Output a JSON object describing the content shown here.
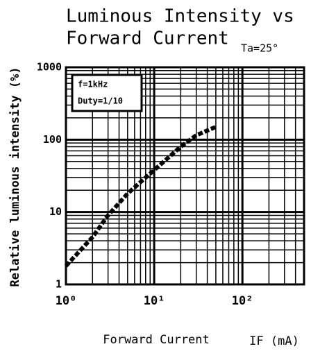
{
  "chart_data": {
    "type": "line",
    "title": [
      "Luminous Intensity vs",
      "Forward Current"
    ],
    "annotations": [
      "Ta=25°",
      "f=1kHz",
      "Duty=1/10"
    ],
    "x_label": "Forward Current",
    "x_unit": "IF (mA)",
    "y_label": "Relative luminous intensity (%)",
    "x": [
      1,
      2,
      3,
      5,
      10,
      20,
      30,
      50
    ],
    "series": [
      {
        "name": "Relative luminous intensity",
        "color": "#000000",
        "values": [
          1.8,
          4.5,
          9,
          18,
          38,
          80,
          115,
          150
        ]
      }
    ],
    "xlim": [
      1,
      500
    ],
    "ylim": [
      1,
      1000
    ],
    "xticks": [
      {
        "value": 1,
        "label": "10⁰"
      },
      {
        "value": 10,
        "label": "10¹"
      },
      {
        "value": 100,
        "label": "10²"
      }
    ],
    "yticks": [
      1,
      10,
      100,
      1000
    ],
    "log_x": true,
    "log_y": true,
    "grid": true
  }
}
